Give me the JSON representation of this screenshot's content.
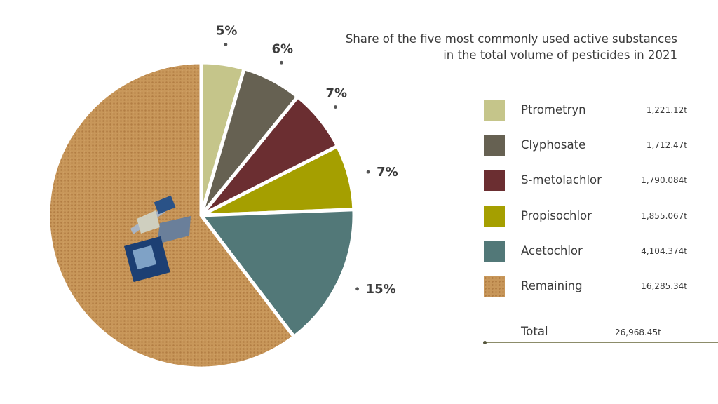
{
  "title": {
    "line1": "Share of the five most commonly used active substances",
    "line2": "in the total volume of pesticides in 2021"
  },
  "chart_data": {
    "type": "pie",
    "title": "Share of the five most commonly used active substances in the total volume of pesticides in 2021",
    "slices": [
      {
        "name": "Ptrometryn",
        "value_label": "1,221.12t",
        "value": 1221.12,
        "percent_label": "5%",
        "color": "#c5c58a"
      },
      {
        "name": "Clyphosate",
        "value_label": "1,712.47t",
        "value": 1712.47,
        "percent_label": "6%",
        "color": "#666152"
      },
      {
        "name": "S-metolachlor",
        "value_label": "1,790.084t",
        "value": 1790.084,
        "percent_label": "7%",
        "color": "#6b2e31"
      },
      {
        "name": "Propisochlor",
        "value_label": "1,855.067t",
        "value": 1855.067,
        "percent_label": "7%",
        "color": "#a59f00"
      },
      {
        "name": "Acetochlor",
        "value_label": "4,104.374t",
        "value": 4104.374,
        "percent_label": "15%",
        "color": "#527878"
      },
      {
        "name": "Remaining",
        "value_label": "16,285.34t",
        "value": 16285.34,
        "percent_label": "",
        "color": "#c8975a"
      }
    ],
    "total": {
      "label": "Total",
      "value_label": "26,968.45t",
      "value": 26968.45
    }
  }
}
